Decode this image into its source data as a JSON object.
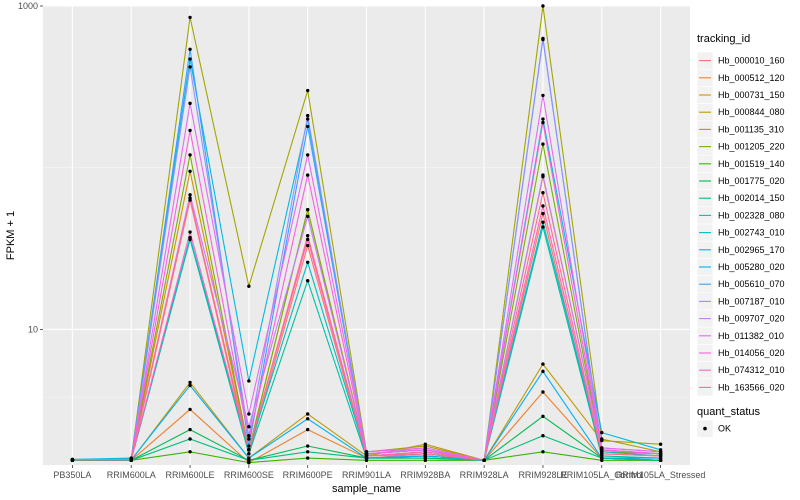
{
  "chart_data": {
    "type": "line",
    "xlabel": "sample_name",
    "ylabel": "FPKM + 1",
    "y_scale": "log10",
    "ylim": [
      1.45,
      1000
    ],
    "y_ticks": [
      10,
      1000
    ],
    "y_tick_labels": [
      "10",
      "1000"
    ],
    "grid": true,
    "legend_placement": "right",
    "legend_title": "tracking_id",
    "shape_legend_title": "quant_status",
    "shape_legend_entries": [
      "OK"
    ],
    "categories": [
      "PB350LA",
      "RRIM600LA",
      "RRIM600LE",
      "RRIM600SE",
      "RRIM600PE",
      "RRIM901LA",
      "RRIM928BA",
      "RRIM928LA",
      "RRIM928LE",
      "RRIM105LA_Control",
      "RRIM105LA_Stressed"
    ],
    "series": [
      {
        "name": "Hb_000010_160",
        "color": "#F8766D",
        "values": [
          1.56,
          1.55,
          63,
          1.7,
          33,
          1.6,
          1.7,
          1.55,
          52,
          1.6,
          1.55
        ]
      },
      {
        "name": "Hb_000512_120",
        "color": "#EA8331",
        "values": [
          1.55,
          1.55,
          3.2,
          1.5,
          2.4,
          1.6,
          1.65,
          1.55,
          4.1,
          1.6,
          1.55
        ]
      },
      {
        "name": "Hb_000731_150",
        "color": "#D89000",
        "values": [
          1.56,
          1.56,
          95,
          1.8,
          55,
          1.7,
          1.8,
          1.55,
          88,
          1.8,
          1.7
        ]
      },
      {
        "name": "Hb_000844_080",
        "color": "#C09B00",
        "values": [
          1.55,
          1.55,
          4.7,
          1.6,
          3.0,
          1.65,
          1.95,
          1.55,
          6.1,
          2.05,
          1.95
        ]
      },
      {
        "name": "Hb_001135_310",
        "color": "#A3A500",
        "values": [
          1.57,
          1.58,
          850,
          18.5,
          300,
          1.75,
          1.9,
          1.55,
          1000,
          2.1,
          1.75
        ]
      },
      {
        "name": "Hb_001205_220",
        "color": "#7CAE00",
        "values": [
          1.56,
          1.56,
          120,
          1.8,
          55,
          1.65,
          1.75,
          1.55,
          140,
          1.75,
          1.7
        ]
      },
      {
        "name": "Hb_001519_140",
        "color": "#39B600",
        "values": [
          1.55,
          1.55,
          1.75,
          1.5,
          1.6,
          1.55,
          1.55,
          1.55,
          1.75,
          1.55,
          1.55
        ]
      },
      {
        "name": "Hb_001775_020",
        "color": "#00BB4E",
        "values": [
          1.55,
          1.55,
          2.4,
          1.55,
          1.9,
          1.6,
          1.6,
          1.55,
          2.9,
          1.6,
          1.55
        ]
      },
      {
        "name": "Hb_002014_150",
        "color": "#00BF7D",
        "values": [
          1.55,
          1.55,
          2.1,
          1.55,
          1.75,
          1.6,
          1.6,
          1.55,
          2.2,
          1.6,
          1.55
        ]
      },
      {
        "name": "Hb_002328_080",
        "color": "#00C1A3",
        "values": [
          1.56,
          1.56,
          36,
          1.7,
          20,
          1.6,
          1.65,
          1.55,
          43,
          1.65,
          1.6
        ]
      },
      {
        "name": "Hb_002743_010",
        "color": "#00BFC4",
        "values": [
          1.56,
          1.57,
          37,
          1.8,
          26,
          1.65,
          1.7,
          1.55,
          46,
          1.75,
          1.65
        ]
      },
      {
        "name": "Hb_002965_170",
        "color": "#00BAE0",
        "values": [
          1.57,
          1.6,
          470,
          4.8,
          200,
          1.7,
          1.8,
          1.55,
          200,
          2.3,
          1.8
        ]
      },
      {
        "name": "Hb_005280_020",
        "color": "#00B0F6",
        "values": [
          1.56,
          1.56,
          4.5,
          1.6,
          2.8,
          1.6,
          1.65,
          1.55,
          5.5,
          1.6,
          1.6
        ]
      },
      {
        "name": "Hb_005610_070",
        "color": "#35A2FF",
        "values": [
          1.56,
          1.56,
          540,
          1.9,
          180,
          1.7,
          1.8,
          1.55,
          630,
          1.8,
          1.7
        ]
      },
      {
        "name": "Hb_007187_010",
        "color": "#9590FF",
        "values": [
          1.56,
          1.57,
          420,
          2.2,
          210,
          1.7,
          1.8,
          1.55,
          620,
          1.85,
          1.75
        ]
      },
      {
        "name": "Hb_009707_020",
        "color": "#C77CFF",
        "values": [
          1.56,
          1.56,
          68,
          2.5,
          50,
          1.7,
          1.85,
          1.55,
          90,
          1.8,
          1.7
        ]
      },
      {
        "name": "Hb_011382_010",
        "color": "#E76BF3",
        "values": [
          1.56,
          1.56,
          250,
          3.0,
          120,
          1.75,
          1.85,
          1.55,
          280,
          1.85,
          1.75
        ]
      },
      {
        "name": "Hb_014056_020",
        "color": "#FA62DB",
        "values": [
          1.56,
          1.56,
          170,
          2.1,
          90,
          1.7,
          1.8,
          1.55,
          190,
          1.8,
          1.7
        ]
      },
      {
        "name": "Hb_074312_010",
        "color": "#FF62BC",
        "values": [
          1.56,
          1.56,
          40,
          1.8,
          36,
          1.65,
          1.75,
          1.55,
          58,
          1.7,
          1.65
        ]
      },
      {
        "name": "Hb_163566_020",
        "color": "#FF6C91",
        "values": [
          1.56,
          1.56,
          65,
          1.8,
          38,
          1.65,
          1.7,
          1.55,
          70,
          1.7,
          1.65
        ]
      }
    ]
  }
}
